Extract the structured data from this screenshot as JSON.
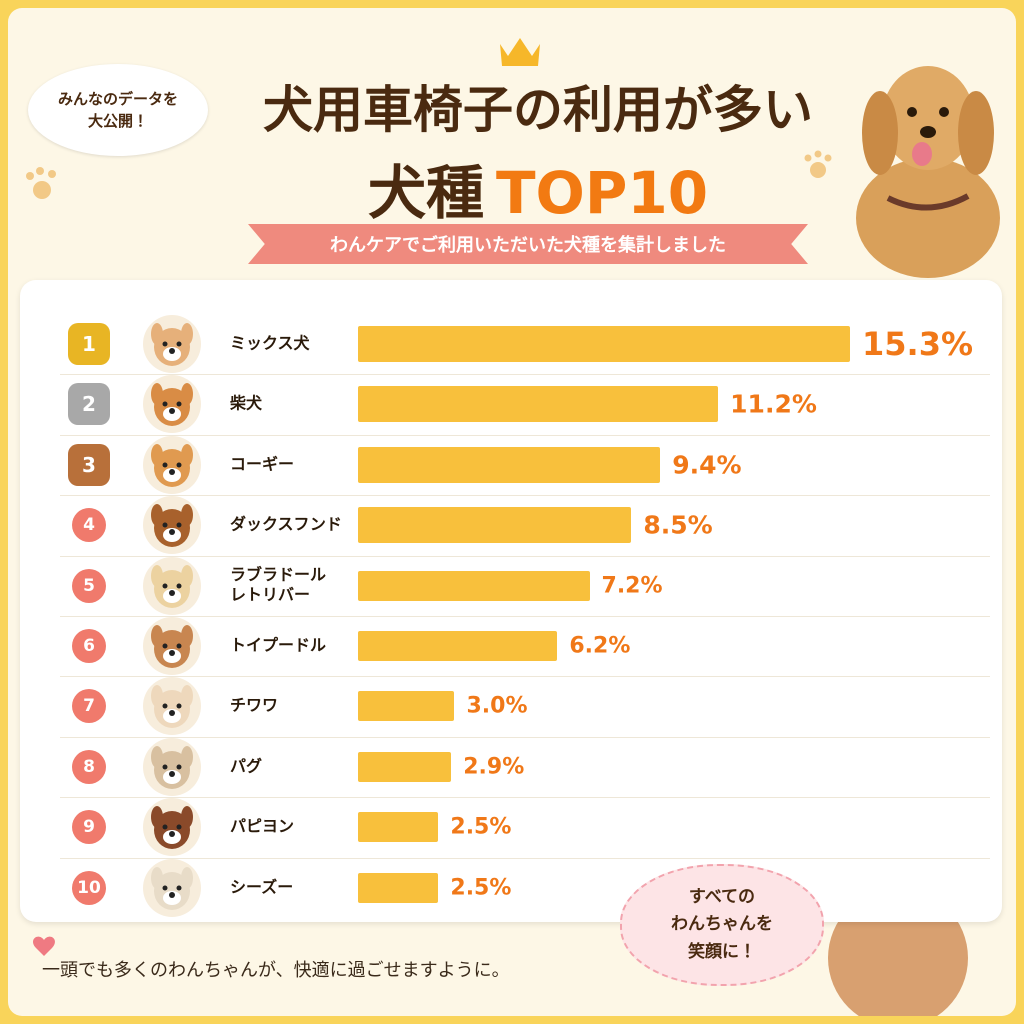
{
  "chart_data": {
    "type": "bar",
    "orientation": "horizontal",
    "badge": "みんなのデータを\n大公開！",
    "title": "犬用車椅子の利用が多い",
    "title_line2": "犬種",
    "title_highlight": "TOP10",
    "subtitle": "わんケアでご利用いただいた犬種を集計しました",
    "ranks": [
      1,
      2,
      3,
      4,
      5,
      6,
      7,
      8,
      9,
      10
    ],
    "categories": [
      "ミックス犬",
      "柴犬",
      "コーギー",
      "ダックスフンド",
      "ラブラドール\nレトリバー",
      "トイプードル",
      "チワワ",
      "パグ",
      "パピヨン",
      "シーズー"
    ],
    "values": [
      15.3,
      11.2,
      9.4,
      8.5,
      7.2,
      6.2,
      3.0,
      2.9,
      2.5,
      2.5
    ],
    "value_labels": [
      "15.3%",
      "11.2%",
      "9.4%",
      "8.5%",
      "7.2%",
      "6.2%",
      "3.0%",
      "2.9%",
      "2.5%",
      "2.5%"
    ],
    "color": "#f8c03c",
    "label_color": "#f07818",
    "footer": "一頭でも多くのわんちゃんが、快適に過ごせますように。",
    "bubble": "すべての\nわんちゃんを\n笑顔に！"
  }
}
